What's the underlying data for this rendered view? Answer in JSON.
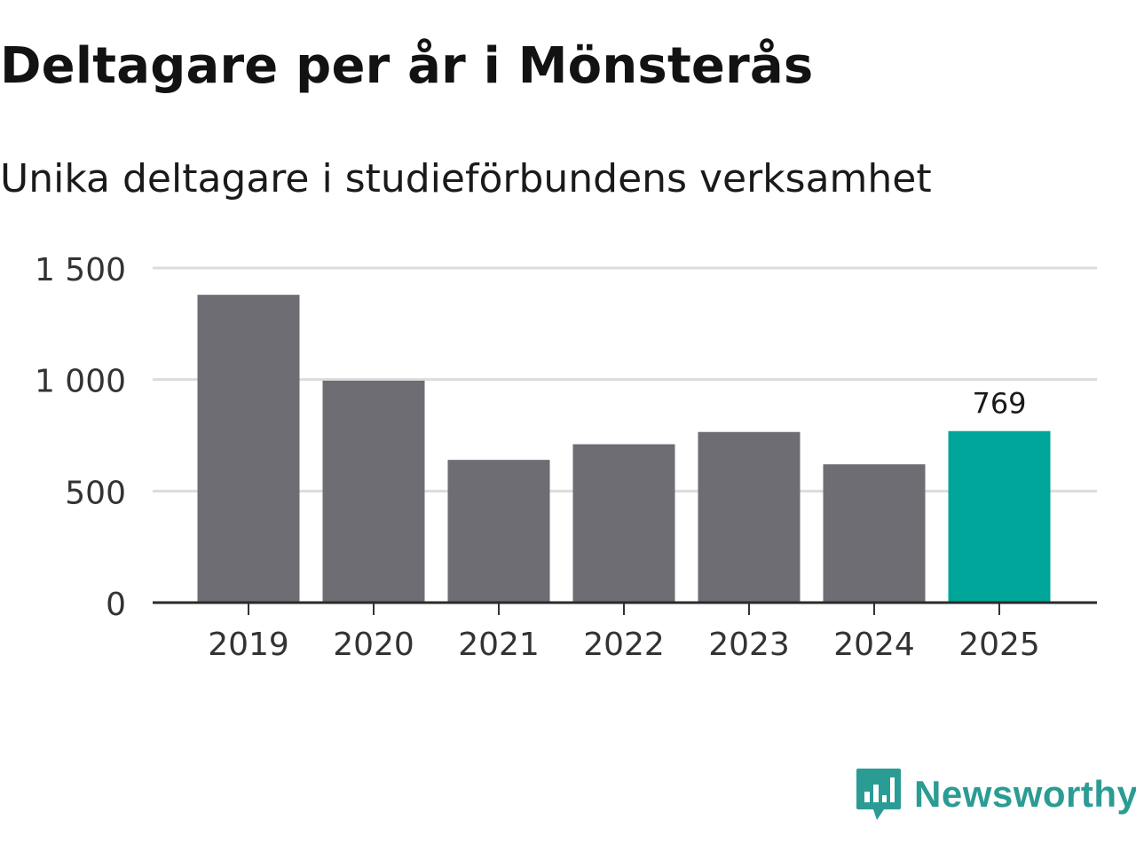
{
  "header": {
    "title": "Deltagare per år i Mönsterås",
    "subtitle": "Unika deltagare i studieförbundens verksamhet"
  },
  "brand": {
    "name": "Newsworthy",
    "icon": "bar-chart-speech-bubble-icon",
    "color": "#2b9c94"
  },
  "chart_data": {
    "type": "bar",
    "title": "Deltagare per år i Mönsterås",
    "subtitle": "Unika deltagare i studieförbundens verksamhet",
    "xlabel": "",
    "ylabel": "",
    "categories": [
      "2019",
      "2020",
      "2021",
      "2022",
      "2023",
      "2024",
      "2025"
    ],
    "values": [
      1380,
      995,
      640,
      710,
      765,
      620,
      769
    ],
    "ylim": [
      0,
      1500
    ],
    "yticks": [
      0,
      500,
      1000,
      1500
    ],
    "ytick_labels": [
      "0",
      "500",
      "1 000",
      "1 500"
    ],
    "grid": true,
    "bar_color": "#6e6d73",
    "highlight_color": "#00a59a",
    "highlight_index": 6,
    "data_labels": [
      {
        "index": 6,
        "text": "769"
      }
    ]
  }
}
